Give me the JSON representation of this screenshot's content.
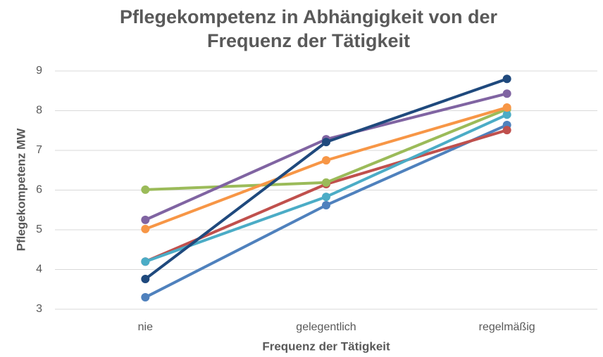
{
  "chart_data": {
    "type": "line",
    "title": [
      "Pflegekompetenz in Abhängigkeit von der",
      "Frequenz der Tätigkeit"
    ],
    "x_label": "Frequenz der Tätigkeit",
    "y_label": "Pflegekompetenz MW",
    "categories": [
      "nie",
      "gelegentlich",
      "regelmäßig"
    ],
    "series": [
      {
        "color": "#4f81bd",
        "values": [
          3.3,
          5.62,
          7.64
        ]
      },
      {
        "color": "#c0504d",
        "values": [
          4.2,
          6.15,
          7.51
        ]
      },
      {
        "color": "#9bbb59",
        "values": [
          6.01,
          6.19,
          8.04
        ]
      },
      {
        "color": "#8064a2",
        "values": [
          5.25,
          7.28,
          8.43
        ]
      },
      {
        "color": "#4bacc6",
        "values": [
          4.2,
          5.83,
          7.9
        ]
      },
      {
        "color": "#f79646",
        "values": [
          5.02,
          6.75,
          8.08
        ]
      },
      {
        "color": "#1f497d",
        "values": [
          3.76,
          7.21,
          8.8
        ]
      }
    ],
    "ylim": [
      3,
      9
    ],
    "yticks": [
      3,
      4,
      5,
      6,
      7,
      8,
      9
    ],
    "grid": true
  }
}
